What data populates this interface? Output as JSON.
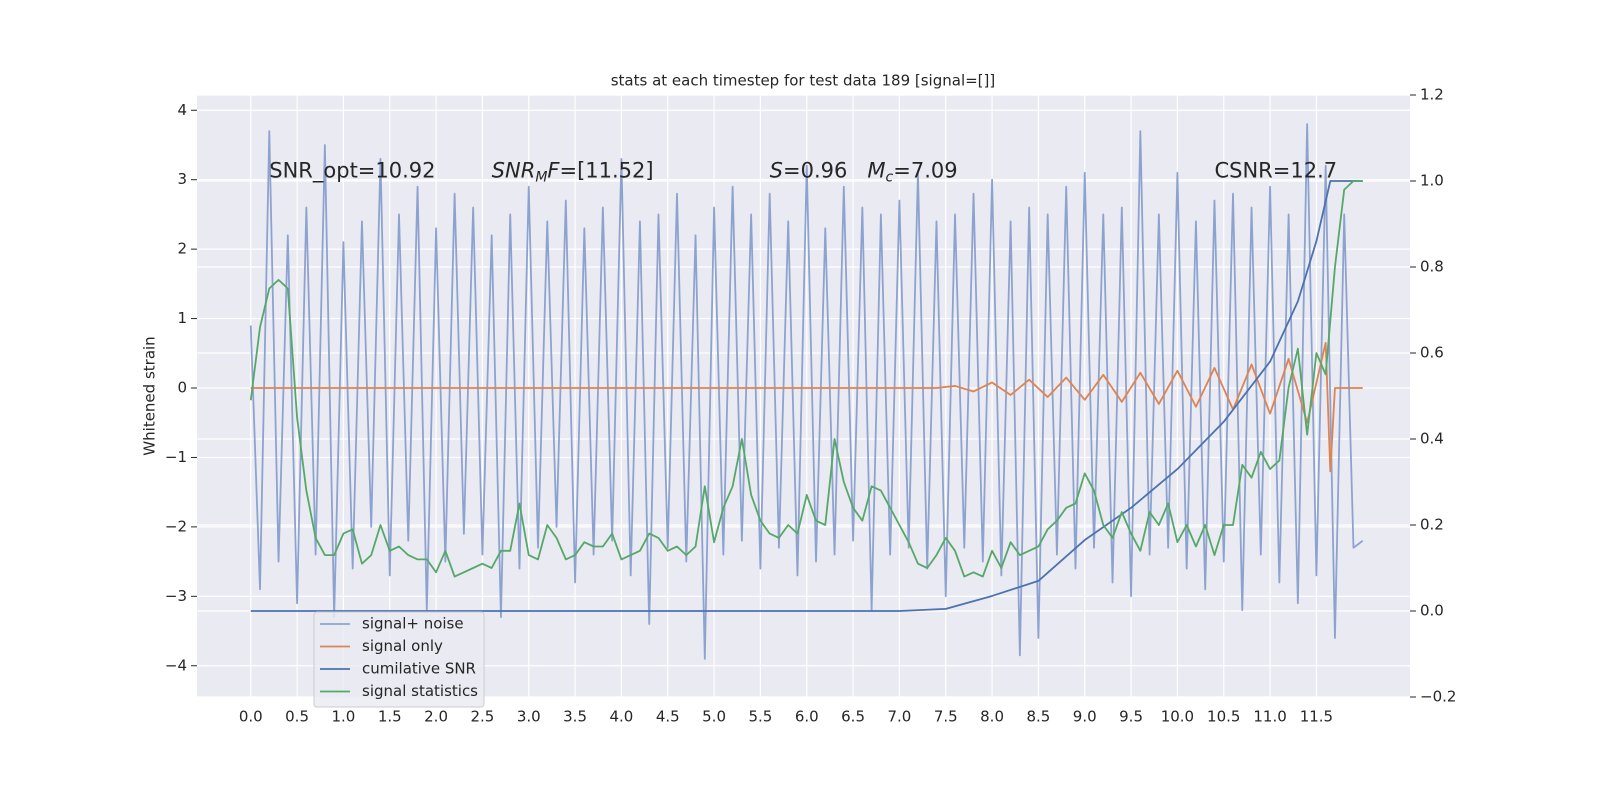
{
  "chart_data": {
    "type": "line",
    "title": "stats at each timestep for test data 189 [signal=[]]",
    "y_label": "Whitened strain",
    "xlim": [
      -0.58,
      12.51
    ],
    "ylim": [
      -4.45,
      4.22
    ],
    "y2lim": [
      -0.2,
      1.2
    ],
    "xticks": [
      {
        "value": 0,
        "label": "0.0"
      },
      0.5,
      {
        "value": 1,
        "label": "1.0"
      },
      1.5,
      {
        "value": 2,
        "label": "2.0"
      },
      2.5,
      {
        "value": 3,
        "label": "3.0"
      },
      3.5,
      {
        "value": 4,
        "label": "4.0"
      },
      4.5,
      {
        "value": 5,
        "label": "5.0"
      },
      5.5,
      {
        "value": 6,
        "label": "6.0"
      },
      6.5,
      {
        "value": 7,
        "label": "7.0"
      },
      7.5,
      {
        "value": 8,
        "label": "8.0"
      },
      8.5,
      {
        "value": 9,
        "label": "9.0"
      },
      9.5,
      {
        "value": 10,
        "label": "10.0"
      },
      10.5,
      {
        "value": 11,
        "label": "11.0"
      },
      11.5
    ],
    "yticks": [
      {
        "value": -4,
        "label": "−4"
      },
      {
        "value": -3,
        "label": "−3"
      },
      {
        "value": -2,
        "label": "−2"
      },
      {
        "value": -1,
        "label": "−1"
      },
      0,
      1,
      2,
      3,
      4
    ],
    "y2ticks": [
      {
        "value": -0.2,
        "label": "−0.2"
      },
      {
        "value": 0,
        "label": "0.0"
      },
      0.2,
      0.4,
      0.6,
      0.8,
      {
        "value": 1,
        "label": "1.0"
      },
      1.2
    ],
    "grid": true,
    "background": "#eaeaf2",
    "legend": "lower left",
    "annotations": [
      {
        "x": 0.2,
        "y": 3,
        "segments": [
          {
            "text": "SNR_opt=10.92",
            "style": "normal"
          }
        ]
      },
      {
        "x": 2.6,
        "y": 3,
        "segments": [
          {
            "text": "SNR",
            "style": "italic"
          },
          {
            "text": "M",
            "style": "sub"
          },
          {
            "text": "F",
            "style": "italic"
          },
          {
            "text": "=[11.52]",
            "style": "normal"
          }
        ]
      },
      {
        "x": 5.6,
        "y": 3,
        "segments": [
          {
            "text": "S",
            "style": "italic"
          },
          {
            "text": "=0.96   ",
            "style": "normal"
          },
          {
            "text": "M",
            "style": "italic"
          },
          {
            "text": "c",
            "style": "sub"
          },
          {
            "text": "=7.09",
            "style": "normal"
          }
        ]
      },
      {
        "x": 10.4,
        "y": 3,
        "segments": [
          {
            "text": "CSNR=12.7",
            "style": "normal"
          }
        ]
      }
    ],
    "series": [
      {
        "name": "signal+ noise",
        "color": "#8da3cf",
        "axis": "y",
        "x": [
          0,
          0.1,
          0.2,
          0.3,
          0.4,
          0.5,
          0.6,
          0.7,
          0.8,
          0.9,
          1,
          1.1,
          1.2,
          1.3,
          1.4,
          1.5,
          1.6,
          1.7,
          1.8,
          1.9,
          2,
          2.1,
          2.2,
          2.3,
          2.4,
          2.5,
          2.6,
          2.7,
          2.8,
          2.9,
          3,
          3.1,
          3.2,
          3.3,
          3.4,
          3.5,
          3.6,
          3.7,
          3.8,
          3.9,
          4,
          4.1,
          4.2,
          4.3,
          4.4,
          4.5,
          4.6,
          4.7,
          4.8,
          4.9,
          5,
          5.1,
          5.2,
          5.3,
          5.4,
          5.5,
          5.6,
          5.7,
          5.8,
          5.9,
          6,
          6.1,
          6.2,
          6.3,
          6.4,
          6.5,
          6.6,
          6.7,
          6.8,
          6.9,
          7,
          7.1,
          7.2,
          7.3,
          7.4,
          7.5,
          7.6,
          7.7,
          7.8,
          7.9,
          8,
          8.1,
          8.2,
          8.3,
          8.4,
          8.5,
          8.6,
          8.7,
          8.8,
          8.9,
          9,
          9.1,
          9.2,
          9.3,
          9.4,
          9.5,
          9.6,
          9.7,
          9.8,
          9.9,
          10,
          10.1,
          10.2,
          10.3,
          10.4,
          10.5,
          10.6,
          10.7,
          10.8,
          10.9,
          11,
          11.1,
          11.2,
          11.3,
          11.4,
          11.5,
          11.6,
          11.7,
          11.8,
          11.9,
          12
        ],
        "values": [
          0.9,
          -2.9,
          3.7,
          -2.5,
          2.2,
          -3.1,
          2.6,
          -2.4,
          3.5,
          -3.3,
          2.1,
          -2.6,
          2.4,
          -2.0,
          3.3,
          -2.7,
          2.5,
          -2.2,
          2.9,
          -3.2,
          2.3,
          -2.5,
          2.8,
          -2.1,
          2.6,
          -2.4,
          2.2,
          -3.3,
          2.5,
          -2.6,
          2.9,
          -2.3,
          2.4,
          -2.0,
          2.7,
          -2.8,
          2.3,
          -2.4,
          2.6,
          -2.2,
          3.3,
          -2.7,
          2.4,
          -3.4,
          2.5,
          -2.3,
          2.8,
          -2.5,
          2.2,
          -3.9,
          2.6,
          -2.4,
          2.9,
          -2.2,
          2.5,
          -2.6,
          2.8,
          -2.3,
          2.4,
          -2.7,
          3.2,
          -2.5,
          2.3,
          -2.4,
          2.9,
          -2.2,
          2.6,
          -3.2,
          2.5,
          -2.4,
          2.7,
          -2.3,
          3.1,
          -2.6,
          2.4,
          -3.0,
          2.5,
          -2.3,
          2.8,
          -2.5,
          3.0,
          -2.7,
          2.4,
          -3.85,
          2.6,
          -3.6,
          2.5,
          -2.4,
          2.9,
          -2.6,
          3.1,
          -2.3,
          2.5,
          -2.8,
          2.6,
          -3.0,
          3.7,
          -2.4,
          2.5,
          -2.3,
          3.1,
          -2.6,
          2.4,
          -2.9,
          2.7,
          -2.5,
          2.8,
          -3.2,
          2.6,
          -2.4,
          2.9,
          -2.8,
          2.5,
          -3.1,
          3.8,
          -2.7,
          3.2,
          -3.6,
          2.5,
          -2.3,
          -2.2
        ]
      },
      {
        "name": "signal only",
        "color": "#dd8452",
        "axis": "y",
        "x": [
          0,
          7.4,
          7.6,
          7.8,
          8,
          8.2,
          8.4,
          8.6,
          8.8,
          9,
          9.2,
          9.4,
          9.6,
          9.8,
          10,
          10.2,
          10.4,
          10.6,
          10.8,
          11,
          11.2,
          11.4,
          11.6,
          11.65,
          11.7,
          12
        ],
        "values": [
          0,
          0,
          0.03,
          -0.05,
          0.08,
          -0.1,
          0.12,
          -0.13,
          0.15,
          -0.17,
          0.19,
          -0.2,
          0.22,
          -0.23,
          0.25,
          -0.27,
          0.29,
          -0.31,
          0.34,
          -0.37,
          0.42,
          -0.5,
          0.65,
          -1.2,
          0,
          0
        ]
      },
      {
        "name": "cumilative SNR",
        "color": "#4c72b0",
        "axis": "y2",
        "x": [
          0,
          7,
          7.5,
          8,
          8.5,
          9,
          9.5,
          10,
          10.5,
          11,
          11.3,
          11.5,
          11.65,
          11.7,
          12
        ],
        "values": [
          0,
          0,
          0.005,
          0.035,
          0.07,
          0.165,
          0.24,
          0.33,
          0.44,
          0.58,
          0.72,
          0.86,
          1,
          1,
          1
        ]
      },
      {
        "name": "signal statistics",
        "color": "#55a868",
        "axis": "y2",
        "x": [
          0,
          0.1,
          0.2,
          0.3,
          0.4,
          0.5,
          0.6,
          0.7,
          0.8,
          0.9,
          1,
          1.1,
          1.2,
          1.3,
          1.4,
          1.5,
          1.6,
          1.7,
          1.8,
          1.9,
          2,
          2.1,
          2.2,
          2.3,
          2.4,
          2.5,
          2.6,
          2.7,
          2.8,
          2.9,
          3,
          3.1,
          3.2,
          3.3,
          3.4,
          3.5,
          3.6,
          3.7,
          3.8,
          3.9,
          4,
          4.1,
          4.2,
          4.3,
          4.4,
          4.5,
          4.6,
          4.7,
          4.8,
          4.9,
          5,
          5.1,
          5.2,
          5.3,
          5.4,
          5.5,
          5.6,
          5.7,
          5.8,
          5.9,
          6,
          6.1,
          6.2,
          6.3,
          6.4,
          6.5,
          6.6,
          6.7,
          6.8,
          6.9,
          7,
          7.1,
          7.2,
          7.3,
          7.4,
          7.5,
          7.6,
          7.7,
          7.8,
          7.9,
          8,
          8.1,
          8.2,
          8.3,
          8.4,
          8.5,
          8.6,
          8.7,
          8.8,
          8.9,
          9,
          9.1,
          9.2,
          9.3,
          9.4,
          9.5,
          9.6,
          9.7,
          9.8,
          9.9,
          10,
          10.1,
          10.2,
          10.3,
          10.4,
          10.5,
          10.6,
          10.7,
          10.8,
          10.9,
          11,
          11.1,
          11.2,
          11.3,
          11.4,
          11.5,
          11.6,
          11.7,
          11.8,
          11.9,
          12
        ],
        "values": [
          0.49,
          0.66,
          0.75,
          0.77,
          0.75,
          0.45,
          0.28,
          0.17,
          0.13,
          0.13,
          0.18,
          0.19,
          0.11,
          0.13,
          0.2,
          0.14,
          0.15,
          0.13,
          0.12,
          0.12,
          0.09,
          0.14,
          0.08,
          0.09,
          0.1,
          0.11,
          0.1,
          0.14,
          0.14,
          0.25,
          0.13,
          0.12,
          0.2,
          0.17,
          0.12,
          0.13,
          0.16,
          0.15,
          0.15,
          0.18,
          0.12,
          0.13,
          0.14,
          0.18,
          0.17,
          0.14,
          0.15,
          0.13,
          0.15,
          0.29,
          0.16,
          0.24,
          0.29,
          0.4,
          0.27,
          0.21,
          0.18,
          0.17,
          0.2,
          0.18,
          0.27,
          0.21,
          0.2,
          0.4,
          0.3,
          0.24,
          0.21,
          0.29,
          0.28,
          0.24,
          0.2,
          0.16,
          0.11,
          0.1,
          0.13,
          0.17,
          0.14,
          0.08,
          0.09,
          0.08,
          0.14,
          0.1,
          0.16,
          0.13,
          0.14,
          0.15,
          0.19,
          0.21,
          0.24,
          0.25,
          0.32,
          0.28,
          0.2,
          0.17,
          0.23,
          0.18,
          0.14,
          0.23,
          0.2,
          0.25,
          0.16,
          0.2,
          0.15,
          0.2,
          0.13,
          0.2,
          0.2,
          0.34,
          0.31,
          0.37,
          0.33,
          0.35,
          0.52,
          0.61,
          0.41,
          0.6,
          0.55,
          0.8,
          0.98,
          1,
          1
        ]
      }
    ]
  }
}
